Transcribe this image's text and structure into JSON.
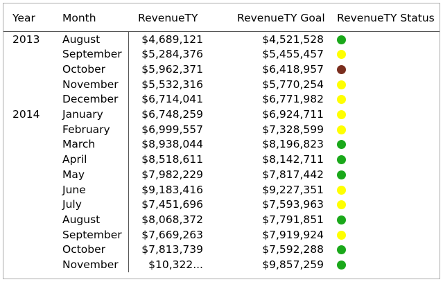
{
  "table": {
    "headers": {
      "year": "Year",
      "month": "Month",
      "revenue": "RevenueTY",
      "goal": "RevenueTY Goal",
      "status": "RevenueTY Status"
    },
    "status_colors": {
      "green": "#1aa81a",
      "yellow": "#ffff00",
      "brown": "#7a2e1e"
    },
    "rows": [
      {
        "year": "2013",
        "month": "August",
        "revenue": "$4,689,121",
        "goal": "$4,521,528",
        "status": "green"
      },
      {
        "year": "",
        "month": "September",
        "revenue": "$5,284,376",
        "goal": "$5,455,457",
        "status": "yellow"
      },
      {
        "year": "",
        "month": "October",
        "revenue": "$5,962,371",
        "goal": "$6,418,957",
        "status": "brown"
      },
      {
        "year": "",
        "month": "November",
        "revenue": "$5,532,316",
        "goal": "$5,770,254",
        "status": "yellow"
      },
      {
        "year": "",
        "month": "December",
        "revenue": "$6,714,041",
        "goal": "$6,771,982",
        "status": "yellow"
      },
      {
        "year": "2014",
        "month": "January",
        "revenue": "$6,748,259",
        "goal": "$6,924,711",
        "status": "yellow"
      },
      {
        "year": "",
        "month": "February",
        "revenue": "$6,999,557",
        "goal": "$7,328,599",
        "status": "yellow"
      },
      {
        "year": "",
        "month": "March",
        "revenue": "$8,938,044",
        "goal": "$8,196,823",
        "status": "green"
      },
      {
        "year": "",
        "month": "April",
        "revenue": "$8,518,611",
        "goal": "$8,142,711",
        "status": "green"
      },
      {
        "year": "",
        "month": "May",
        "revenue": "$7,982,229",
        "goal": "$7,817,442",
        "status": "green"
      },
      {
        "year": "",
        "month": "June",
        "revenue": "$9,183,416",
        "goal": "$9,227,351",
        "status": "yellow"
      },
      {
        "year": "",
        "month": "July",
        "revenue": "$7,451,696",
        "goal": "$7,593,963",
        "status": "yellow"
      },
      {
        "year": "",
        "month": "August",
        "revenue": "$8,068,372",
        "goal": "$7,791,851",
        "status": "green"
      },
      {
        "year": "",
        "month": "September",
        "revenue": "$7,669,263",
        "goal": "$7,919,924",
        "status": "yellow"
      },
      {
        "year": "",
        "month": "October",
        "revenue": "$7,813,739",
        "goal": "$7,592,288",
        "status": "green"
      },
      {
        "year": "",
        "month": "November",
        "revenue": "$10,322...",
        "goal": "$9,857,259",
        "status": "green"
      }
    ]
  }
}
